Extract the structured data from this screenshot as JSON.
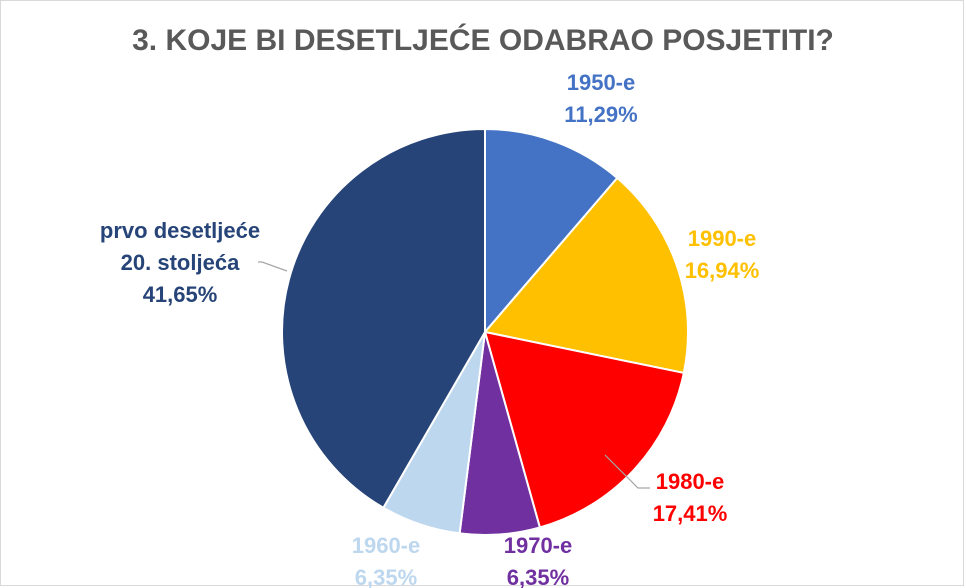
{
  "chart_data": {
    "type": "pie",
    "title": "3. KOJE BI DESETLJEĆE ODABRAO POSJETITI?",
    "slices": [
      {
        "label": "1950-e",
        "value_label": "11,29%",
        "value": 11.29,
        "color": "#4472C4"
      },
      {
        "label": "1990-e",
        "value_label": "16,94%",
        "value": 16.94,
        "color": "#FFC000"
      },
      {
        "label": "1980-e",
        "value_label": "17,41%",
        "value": 17.41,
        "color": "#FF0000"
      },
      {
        "label": "1970-e",
        "value_label": "6,35%",
        "value": 6.35,
        "color": "#7030A0"
      },
      {
        "label": "1960-e",
        "value_label": "6,35%",
        "value": 6.35,
        "color": "#BDD7EE"
      },
      {
        "label_lines": [
          "prvo desetljeće",
          "20. stoljeća"
        ],
        "value_label": "41,65%",
        "value": 41.65,
        "color": "#264478"
      }
    ],
    "legend": "none",
    "data_labels": "outside"
  }
}
